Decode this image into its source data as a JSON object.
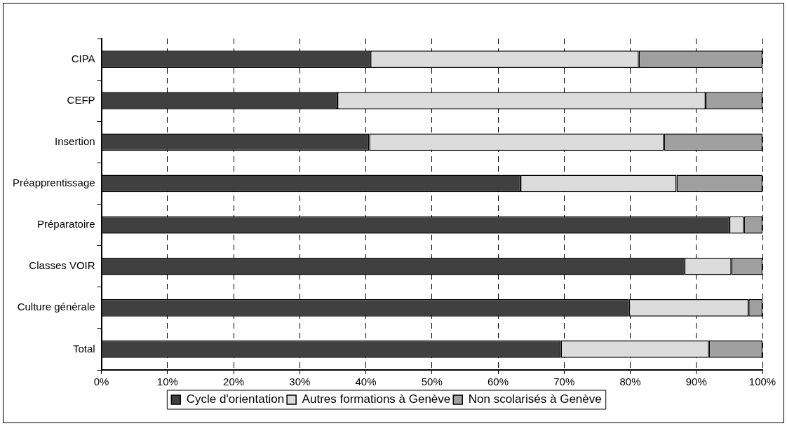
{
  "chart_data": {
    "type": "bar",
    "orientation": "horizontal",
    "stacked": true,
    "categories": [
      "CIPA",
      "CEFP",
      "Insertion",
      "Préapprentissage",
      "Préparatoire",
      "Classes VOIR",
      "Culture générale",
      "Total"
    ],
    "series": [
      {
        "name": "Cycle d'orientation",
        "color": "#404040",
        "values": [
          40.7,
          35.7,
          40.5,
          63.4,
          95.0,
          88.2,
          79.8,
          69.5
        ]
      },
      {
        "name": "Autres formations à Genève",
        "color": "#dcdcdc",
        "values": [
          40.6,
          55.7,
          44.6,
          23.6,
          2.2,
          7.1,
          18.1,
          22.4
        ]
      },
      {
        "name": "Non scolarisés à Genève",
        "color": "#a0a0a0",
        "values": [
          18.7,
          8.6,
          14.9,
          13.0,
          2.8,
          4.7,
          2.1,
          8.1
        ]
      }
    ],
    "xlim": [
      0,
      100
    ],
    "xticks": [
      {
        "value": 0,
        "label": "0%"
      },
      {
        "value": 10,
        "label": "10%"
      },
      {
        "value": 20,
        "label": "20%"
      },
      {
        "value": 30,
        "label": "30%"
      },
      {
        "value": 40,
        "label": "40%"
      },
      {
        "value": 50,
        "label": "50%"
      },
      {
        "value": 60,
        "label": "60%"
      },
      {
        "value": 70,
        "label": "70%"
      },
      {
        "value": 80,
        "label": "80%"
      },
      {
        "value": 90,
        "label": "90%"
      },
      {
        "value": 100,
        "label": "100%"
      }
    ],
    "grid": "x",
    "legend": "bottom"
  }
}
